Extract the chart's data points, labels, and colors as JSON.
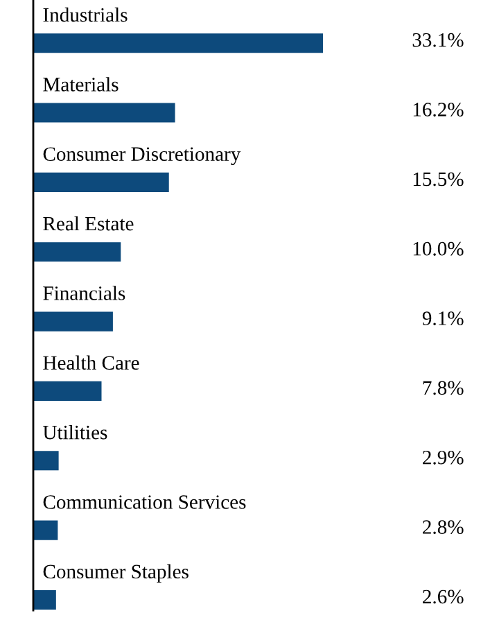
{
  "chart_data": {
    "type": "bar",
    "orientation": "horizontal",
    "categories": [
      "Industrials",
      "Materials",
      "Consumer Discretionary",
      "Real Estate",
      "Financials",
      "Health Care",
      "Utilities",
      "Communication Services",
      "Consumer Staples"
    ],
    "values": [
      33.1,
      16.2,
      15.5,
      10.0,
      9.1,
      7.8,
      2.9,
      2.8,
      2.6
    ],
    "value_labels": [
      "33.1%",
      "16.2%",
      "15.5%",
      "10.0%",
      "9.1%",
      "7.8%",
      "2.9%",
      "2.8%",
      "2.6%"
    ],
    "color": "#0d4a7c"
  }
}
